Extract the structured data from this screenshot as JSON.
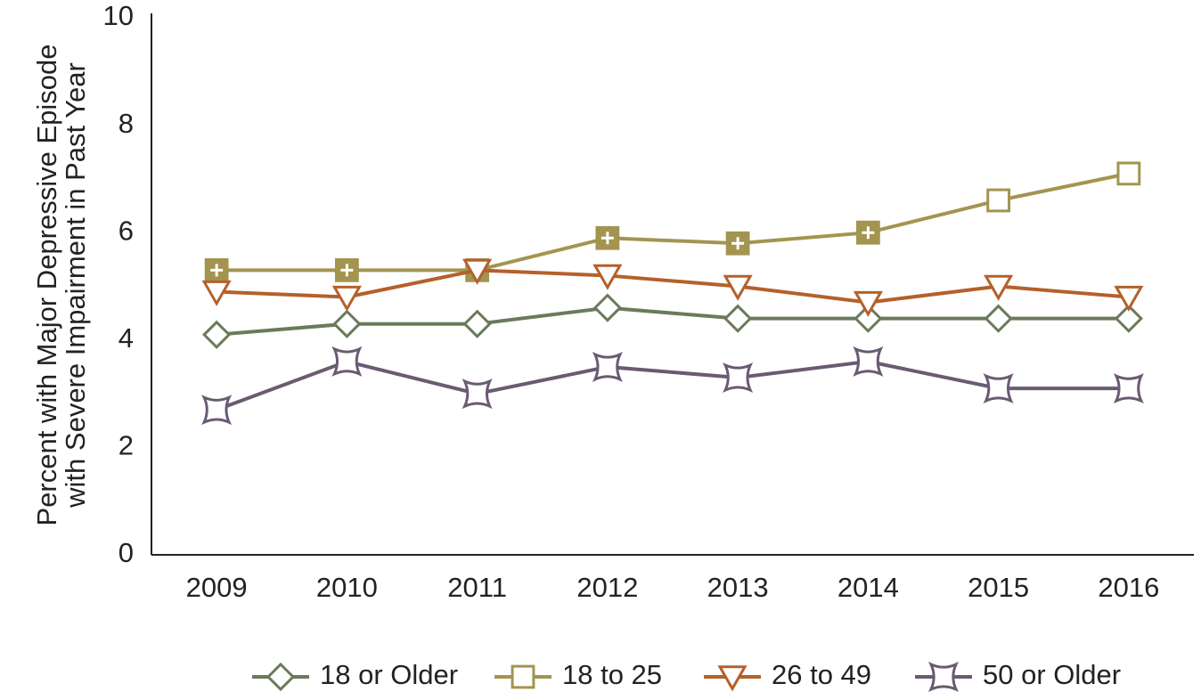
{
  "chart_data": {
    "type": "line",
    "ylabel": [
      "Percent with Major Depressive Episode",
      "with Severe Impairment in Past Year"
    ],
    "categories": [
      "2009",
      "2010",
      "2011",
      "2012",
      "2013",
      "2014",
      "2015",
      "2016"
    ],
    "ylim": [
      0,
      10
    ],
    "yticks": [
      0,
      2,
      4,
      6,
      8,
      10
    ],
    "grid": false,
    "legend": "bottom",
    "series": [
      {
        "name": "18 or Older",
        "color": "#6b7a5a",
        "marker": "diamond",
        "values": [
          4.1,
          4.3,
          4.3,
          4.6,
          4.4,
          4.4,
          4.4,
          4.4
        ]
      },
      {
        "name": "18 to 25",
        "color": "#a39450",
        "marker": "square",
        "filled": [
          true,
          true,
          true,
          true,
          true,
          true,
          false,
          false
        ],
        "values": [
          5.3,
          5.3,
          5.3,
          5.9,
          5.8,
          6.0,
          6.6,
          7.1
        ]
      },
      {
        "name": "26 to 49",
        "color": "#b5602a",
        "marker": "triangle-down",
        "values": [
          4.9,
          4.8,
          5.3,
          5.2,
          5.0,
          4.7,
          5.0,
          4.8
        ]
      },
      {
        "name": "50 or Older",
        "color": "#6b5a73",
        "marker": "concave-square",
        "values": [
          2.7,
          3.6,
          3.0,
          3.5,
          3.3,
          3.6,
          3.1,
          3.1
        ]
      }
    ]
  }
}
